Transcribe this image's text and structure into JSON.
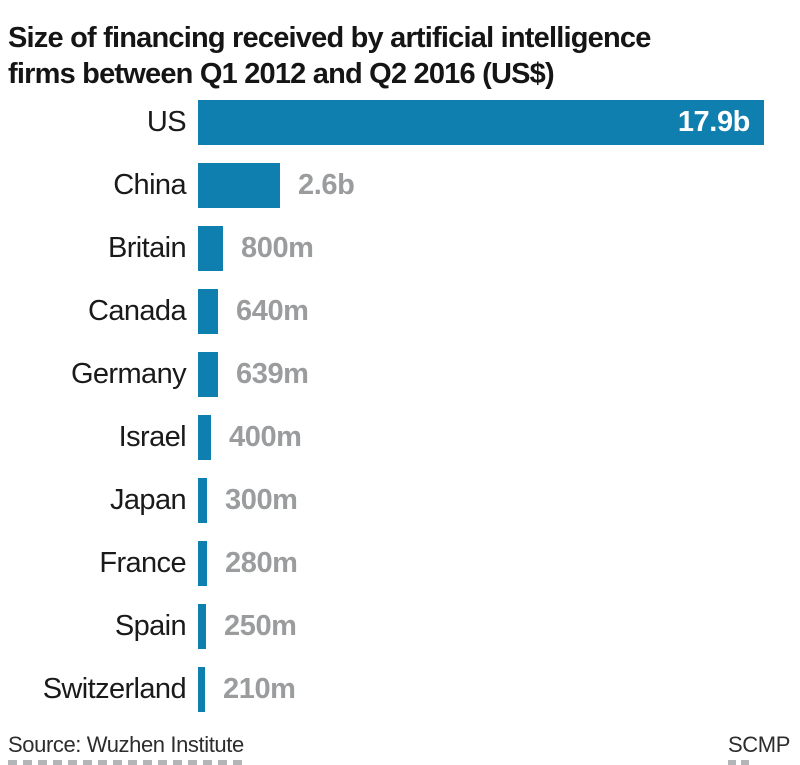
{
  "header": {
    "title_line1": "Size of financing received by artificial intelligence",
    "title_line2": "firms between Q1 2012 and Q2 2016 (US$)"
  },
  "chart_data": {
    "type": "bar",
    "orientation": "horizontal",
    "title": "Size of financing received by artificial intelligence firms between Q1 2012 and Q2 2016 (US$)",
    "categories": [
      "US",
      "China",
      "Britain",
      "Canada",
      "Germany",
      "Israel",
      "Japan",
      "France",
      "Spain",
      "Switzerland"
    ],
    "values_billions_usd": [
      17.9,
      2.6,
      0.8,
      0.64,
      0.639,
      0.4,
      0.3,
      0.28,
      0.25,
      0.21
    ],
    "value_labels": [
      "17.9b",
      "2.6b",
      "800m",
      "640m",
      "639m",
      "400m",
      "300m",
      "280m",
      "250m",
      "210m"
    ],
    "value_label_inside": [
      true,
      false,
      false,
      false,
      false,
      false,
      false,
      false,
      false,
      false
    ],
    "xlim": [
      0,
      17.9
    ],
    "grid": false,
    "legend": false,
    "bar_color": "#0e7fae",
    "value_label_color_outside": "#9a9c9e",
    "value_label_color_inside": "#ffffff",
    "category_label_color": "#1a1a1a"
  },
  "footer": {
    "source": "Source: Wuzhen Institute",
    "credit": "SCMP"
  }
}
